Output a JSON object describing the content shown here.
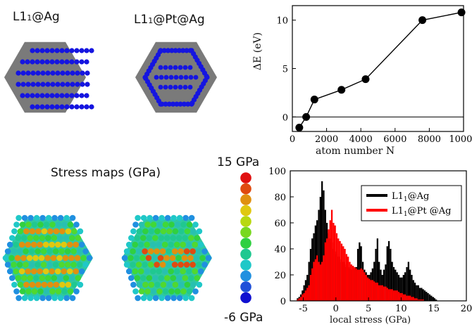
{
  "panels": {
    "cluster_a_label": "L1",
    "cluster_a_sub": "1",
    "cluster_a_suffix": "@Ag",
    "cluster_b_label": "L1",
    "cluster_b_sub": "1",
    "cluster_b_suffix": "@Pt@Ag",
    "stress_title": "Stress maps (GPa)",
    "scale_top": "15 GPa",
    "scale_bottom": "-6 GPa"
  },
  "colors": {
    "shell_gray": "#7a7a7a",
    "core_blue": "#1515e0",
    "scale": [
      "#e01010",
      "#e04a10",
      "#e09010",
      "#e0c810",
      "#b8d810",
      "#78d820",
      "#30d040",
      "#20c890",
      "#20c8c8",
      "#2090e0",
      "#2050d8",
      "#1010d0"
    ]
  },
  "chart_data": [
    {
      "type": "line",
      "xlabel": "atom number N",
      "ylabel": "ΔE (eV)",
      "xlim": [
        0,
        10000
      ],
      "ylim": [
        -1.5,
        11.5
      ],
      "xticks": [
        0,
        2000,
        4000,
        6000,
        8000,
        10000
      ],
      "yticks": [
        0,
        5,
        10
      ],
      "x": [
        405,
        807,
        1289,
        2869,
        4279,
        7597,
        9879
      ],
      "y": [
        -1.1,
        0.0,
        1.8,
        2.8,
        3.9,
        10.0,
        10.8
      ],
      "reference_line_y": 0
    },
    {
      "type": "bar",
      "xlabel": "local stress (GPa)",
      "ylabel": "",
      "xlim": [
        -7,
        20
      ],
      "ylim": [
        0,
        100
      ],
      "xticks": [
        -5,
        0,
        5,
        10,
        15,
        20
      ],
      "yticks": [
        0,
        20,
        40,
        60,
        80,
        100
      ],
      "bin_start": -6,
      "bin_width": 0.25,
      "legend_position": "top-right",
      "series": [
        {
          "name": "L1",
          "name_sub": "1",
          "name_suffix": "@Ag",
          "color": "#000000",
          "values": [
            2,
            3,
            5,
            8,
            12,
            16,
            20,
            30,
            40,
            48,
            52,
            58,
            62,
            70,
            80,
            92,
            85,
            70,
            60,
            52,
            48,
            45,
            40,
            38,
            36,
            34,
            32,
            30,
            30,
            28,
            26,
            26,
            25,
            24,
            24,
            25,
            26,
            40,
            45,
            42,
            30,
            24,
            22,
            20,
            20,
            22,
            25,
            30,
            40,
            48,
            30,
            24,
            20,
            24,
            28,
            42,
            46,
            40,
            30,
            26,
            24,
            22,
            20,
            18,
            18,
            20,
            22,
            26,
            30,
            24,
            20,
            16,
            14,
            12,
            12,
            10,
            10,
            9,
            8,
            7,
            6,
            5,
            4,
            3,
            2,
            1
          ]
        },
        {
          "name": "L1",
          "name_sub": "1",
          "name_suffix": "@Pt @Ag",
          "color": "#ff0000",
          "values": [
            1,
            2,
            3,
            5,
            6,
            8,
            10,
            12,
            20,
            25,
            30,
            32,
            35,
            30,
            28,
            30,
            35,
            45,
            48,
            55,
            62,
            70,
            60,
            58,
            52,
            48,
            46,
            44,
            42,
            40,
            36,
            34,
            30,
            28,
            27,
            26,
            25,
            24,
            24,
            25,
            24,
            22,
            20,
            18,
            17,
            16,
            16,
            15,
            14,
            14,
            12,
            12,
            12,
            11,
            11,
            10,
            9,
            9,
            9,
            8,
            8,
            8,
            7,
            6,
            6,
            5,
            5,
            4,
            4,
            4,
            3,
            3,
            2,
            2,
            1,
            1,
            1,
            1,
            0,
            0,
            0,
            0,
            0,
            0,
            0,
            0
          ]
        }
      ]
    }
  ]
}
